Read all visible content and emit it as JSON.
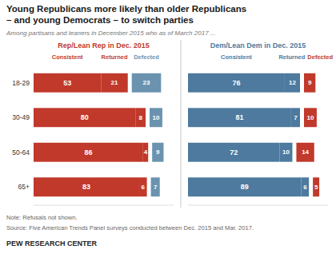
{
  "title": "Young Republicans more likely than older Republicans\n– and young Democrats – to switch parties",
  "subtitle": "Among partisans and leaners in December 2015 who as of March 2017 ...",
  "annotations": [
    "Note: Refusals not shown.",
    "Source: Five American Trends Panel surveys conducted between Dec. 2015 and Mar. 2017.",
    "PEW RESEARCH CENTER"
  ],
  "chart_data": [
    {
      "type": "bar",
      "title": "Rep/Lean Rep in Dec. 2015",
      "orientation": "horizontal",
      "stacked": true,
      "data_labels": true,
      "tick_labels": "y",
      "categories": [
        "18-29",
        "30-49",
        "50-64",
        "65+"
      ],
      "xlim": [
        0,
        110
      ],
      "series": [
        {
          "name": "Consistent",
          "color": "#C0392B",
          "values": [
            53,
            80,
            86,
            83
          ]
        },
        {
          "name": "Returned",
          "color": "#C0392B",
          "values": [
            21,
            8,
            4,
            6
          ]
        },
        {
          "name": "Defected",
          "color": "#6B93B0",
          "values": [
            23,
            10,
            9,
            7
          ]
        }
      ]
    },
    {
      "type": "bar",
      "title": "Dem/Lean Dem in Dec. 2015",
      "orientation": "horizontal",
      "stacked": true,
      "data_labels": true,
      "tick_labels": false,
      "categories": [
        "18-29",
        "30-49",
        "50-64",
        "65+"
      ],
      "xlim": [
        0,
        110
      ],
      "series": [
        {
          "name": "Consistent",
          "color": "#4D7A9E",
          "values": [
            76,
            81,
            72,
            89
          ]
        },
        {
          "name": "Returned",
          "color": "#4D7A9E",
          "values": [
            12,
            7,
            10,
            6
          ]
        },
        {
          "name": "Defected",
          "color": "#C0392B",
          "values": [
            9,
            10,
            14,
            5
          ]
        }
      ]
    }
  ]
}
